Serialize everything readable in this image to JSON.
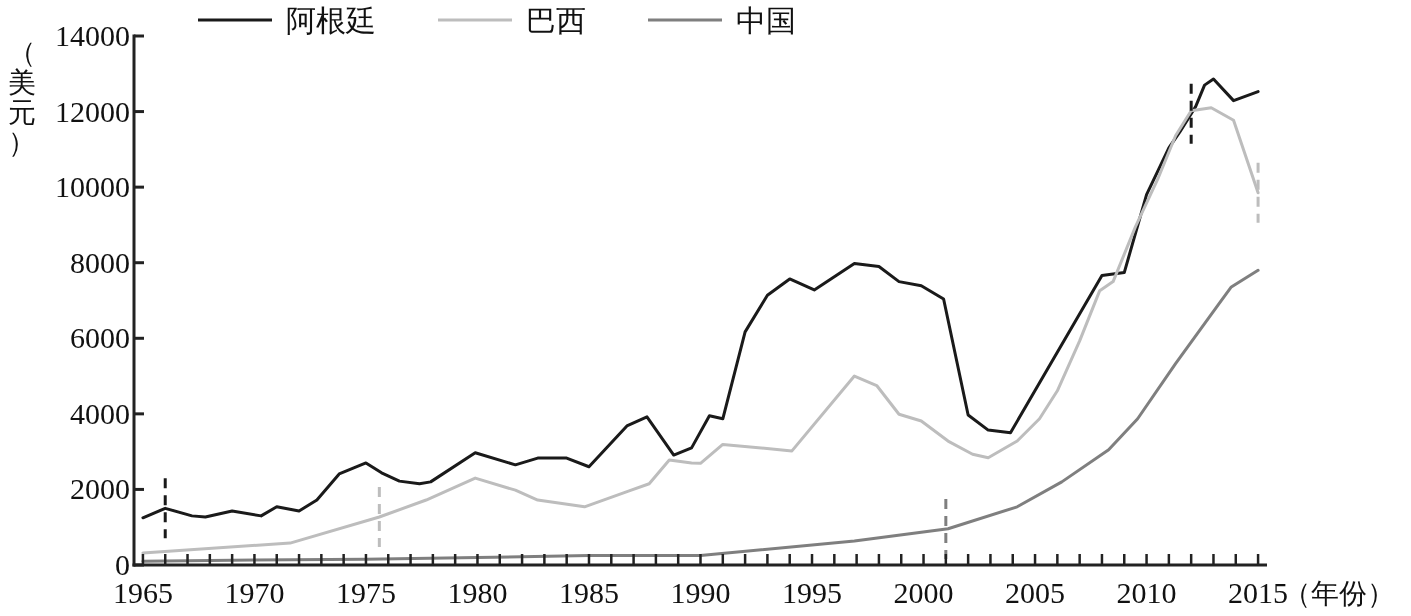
{
  "chart_data": {
    "type": "line",
    "xlabel": "（年份）",
    "ylabel": "（美元）",
    "legend": "top",
    "grid": false,
    "line_style": "solid",
    "xlim": [
      1964.6,
      2015.4
    ],
    "xticks": [
      1965,
      {
        "value": 1966,
        "label": null
      },
      {
        "value": 1967,
        "label": null
      },
      {
        "value": 1968,
        "label": null
      },
      {
        "value": 1969,
        "label": null
      },
      1970,
      {
        "value": 1971,
        "label": null
      },
      {
        "value": 1972,
        "label": null
      },
      {
        "value": 1973,
        "label": null
      },
      {
        "value": 1974,
        "label": null
      },
      1975,
      {
        "value": 1976,
        "label": null
      },
      {
        "value": 1977,
        "label": null
      },
      {
        "value": 1978,
        "label": null
      },
      {
        "value": 1979,
        "label": null
      },
      1980,
      {
        "value": 1981,
        "label": null
      },
      {
        "value": 1982,
        "label": null
      },
      {
        "value": 1983,
        "label": null
      },
      {
        "value": 1984,
        "label": null
      },
      1985,
      {
        "value": 1986,
        "label": null
      },
      {
        "value": 1987,
        "label": null
      },
      {
        "value": 1988,
        "label": null
      },
      {
        "value": 1989,
        "label": null
      },
      1990,
      {
        "value": 1991,
        "label": null
      },
      {
        "value": 1992,
        "label": null
      },
      {
        "value": 1993,
        "label": null
      },
      {
        "value": 1994,
        "label": null
      },
      1995,
      {
        "value": 1996,
        "label": null
      },
      {
        "value": 1997,
        "label": null
      },
      {
        "value": 1998,
        "label": null
      },
      {
        "value": 1999,
        "label": null
      },
      2000,
      {
        "value": 2001,
        "label": null
      },
      {
        "value": 2002,
        "label": null
      },
      {
        "value": 2003,
        "label": null
      },
      {
        "value": 2004,
        "label": null
      },
      2005,
      {
        "value": 2006,
        "label": null
      },
      {
        "value": 2007,
        "label": null
      },
      {
        "value": 2008,
        "label": null
      },
      {
        "value": 2009,
        "label": null
      },
      2010,
      {
        "value": 2011,
        "label": null
      },
      {
        "value": 2012,
        "label": null
      },
      {
        "value": 2013,
        "label": null
      },
      {
        "value": 2014,
        "label": null
      },
      2015
    ],
    "ylim": [
      0,
      14000
    ],
    "yticks": [
      0,
      2000,
      4000,
      6000,
      8000,
      10000,
      12000,
      14000
    ],
    "series": [
      {
        "name": "阿根廷",
        "color": "#1a1a1a",
        "x": [
          1965,
          1966,
          1967.2,
          1967.8,
          1969,
          1970.3,
          1971,
          1972,
          1972.8,
          1973.8,
          1975,
          1975.7,
          1976.5,
          1977.4,
          1977.9,
          1979.9,
          1981.7,
          1982.7,
          1984,
          1985,
          1986.7,
          1987.6,
          1988.8,
          1989.6,
          1990.4,
          1991,
          1992,
          1993,
          1994,
          1995.1,
          1996.9,
          1998,
          1998.9,
          1999.9,
          2000.9,
          2002,
          2002.9,
          2003.9,
          2008,
          2009,
          2010,
          2011,
          2011.5,
          2012.2,
          2012.6,
          2013,
          2013.9,
          2015
        ],
        "values": [
          1250,
          1500,
          1300,
          1270,
          1430,
          1300,
          1540,
          1430,
          1720,
          2410,
          2700,
          2440,
          2220,
          2150,
          2200,
          2970,
          2650,
          2830,
          2830,
          2600,
          3680,
          3920,
          2910,
          3100,
          3950,
          3870,
          6170,
          7140,
          7570,
          7280,
          7980,
          7900,
          7500,
          7390,
          7040,
          3970,
          3570,
          3500,
          7660,
          7740,
          9800,
          11040,
          11470,
          12130,
          12700,
          12860,
          12290,
          12530
        ]
      },
      {
        "name": "巴西",
        "color": "#bdbdbd",
        "x": [
          1965,
          1971.6,
          1975.6,
          1977.7,
          1979.9,
          1981.7,
          1982.7,
          1984.8,
          1986.8,
          1987.7,
          1988.6,
          1989.6,
          1990,
          1991,
          1994.1,
          1996.9,
          1997.9,
          1998.9,
          1999.9,
          2001.1,
          2002.2,
          2002.9,
          2004.2,
          2005.2,
          2006,
          2007,
          2007.9,
          2008.5,
          2009.5,
          2010.5,
          2011.3,
          2012,
          2012.9,
          2013.9,
          2015
        ],
        "values": [
          320,
          580,
          1270,
          1720,
          2300,
          1980,
          1720,
          1540,
          1960,
          2150,
          2780,
          2700,
          2690,
          3190,
          3020,
          5000,
          4750,
          3990,
          3810,
          3280,
          2930,
          2840,
          3280,
          3870,
          4610,
          5930,
          7260,
          7500,
          8950,
          10210,
          11360,
          12020,
          12100,
          11770,
          9850
        ]
      },
      {
        "name": "中国",
        "color": "#7f7f7f",
        "x": [
          1965,
          1970,
          1975,
          1980,
          1985,
          1990,
          1996.9,
          2001.1,
          2004.2,
          2006.2,
          2008.3,
          2009.6,
          2011.3,
          2013.3,
          2013.8,
          2015
        ],
        "values": [
          100,
          130,
          150,
          200,
          250,
          250,
          635,
          960,
          1540,
          2200,
          3050,
          3870,
          5330,
          6960,
          7360,
          7800
        ]
      }
    ],
    "ref_lines": [
      {
        "axis": "x",
        "value": 1966,
        "color": "#1a1a1a",
        "line_style": "dashed"
      },
      {
        "axis": "x",
        "value": 1975.6,
        "color": "#bdbdbd",
        "line_style": "dashed"
      },
      {
        "axis": "x",
        "value": 2001,
        "color": "#7f7f7f",
        "line_style": "dashed"
      },
      {
        "axis": "x",
        "value": 2012,
        "color": "#1a1a1a",
        "line_style": "dashed"
      },
      {
        "axis": "x",
        "value": 2015,
        "color": "#bdbdbd",
        "line_style": "dashed"
      }
    ]
  }
}
